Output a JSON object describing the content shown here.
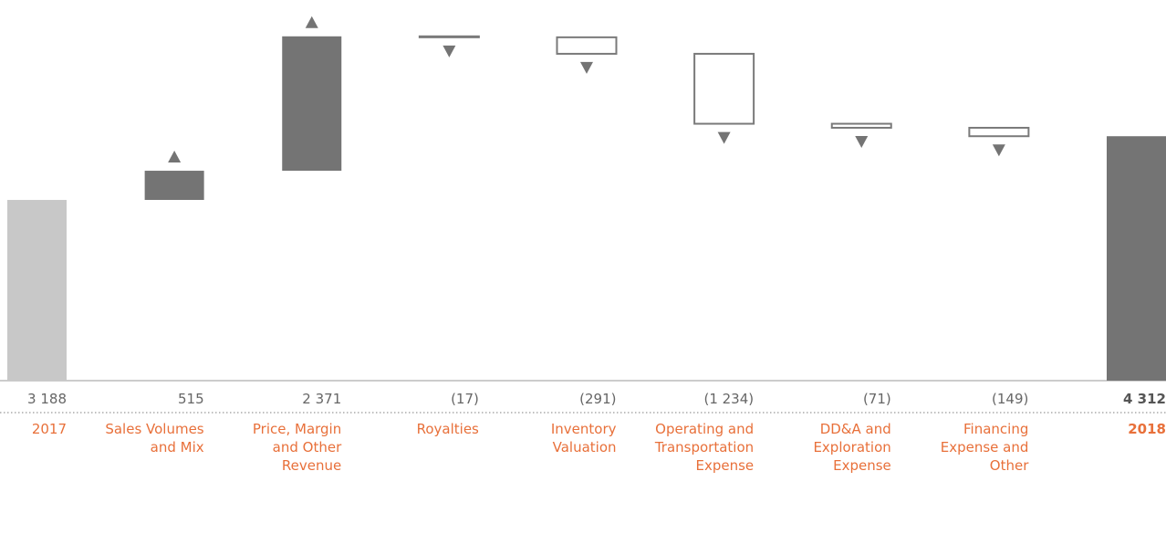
{
  "chart_data": {
    "type": "waterfall",
    "categories": [
      "2017",
      "Sales Volumes and Mix",
      "Price, Margin and Other Revenue",
      "Royalties",
      "Inventory Valuation",
      "Operating and Transportation Expense",
      "DD&A and Exploration Expense",
      "Financing Expense and Other",
      "2018"
    ],
    "values": [
      3188,
      515,
      2371,
      -17,
      -291,
      -1234,
      -71,
      -149,
      4312
    ],
    "value_labels": [
      "3 188",
      "515",
      "2 371",
      "(17)",
      "(291)",
      "(1 234)",
      "(71)",
      "(149)",
      "4 312"
    ],
    "measure": [
      "absolute",
      "relative",
      "relative",
      "relative",
      "relative",
      "relative",
      "relative",
      "relative",
      "total"
    ],
    "colors": {
      "absolute": "#c8c8c8",
      "increase": "#747474",
      "decrease": "#ffffff",
      "total": "#747474",
      "edge": "#7a7a7a",
      "label": "#e8703a"
    },
    "ylim": [
      0,
      6715
    ]
  }
}
